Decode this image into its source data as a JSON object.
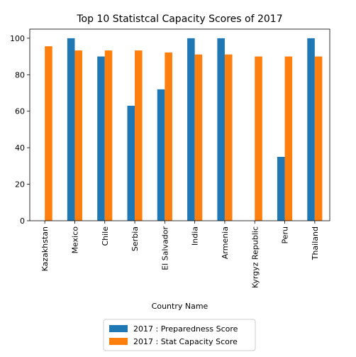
{
  "chart_data": {
    "type": "bar",
    "title": "Top 10 Statistcal Capacity Scores of 2017",
    "xlabel": "Country Name",
    "ylabel": "",
    "ylim": [
      0,
      105
    ],
    "yticks": [
      0,
      20,
      40,
      60,
      80,
      100
    ],
    "categories": [
      "Kazakhstan",
      "Mexico",
      "Chile",
      "Serbia",
      "El Salvador",
      "India",
      "Armenia",
      "Kyrgyz Republic",
      "Peru",
      "Thailand"
    ],
    "series": [
      {
        "name": "2017 : Preparedness Score",
        "color": "#1f77b4",
        "values": [
          null,
          100,
          90,
          63,
          72,
          100,
          100,
          null,
          35,
          100
        ]
      },
      {
        "name": "2017 : Stat Capacity Score",
        "color": "#ff7f0e",
        "values": [
          95.6,
          93.3,
          93.3,
          93.3,
          92.2,
          91.1,
          91.1,
          90.0,
          90.0,
          90.0
        ]
      }
    ],
    "legend_position": "below-center",
    "grid": false
  }
}
